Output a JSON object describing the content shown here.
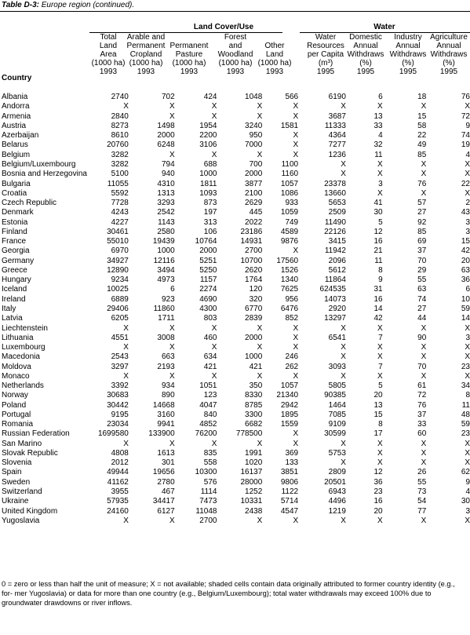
{
  "caption": {
    "label": "Table D-3:",
    "title": " Europe region (continued)."
  },
  "groups": {
    "land": "Land Cover/Use",
    "water": "Water"
  },
  "columns": [
    [
      "Total",
      "Land",
      "Area",
      "(1000 ha)",
      "1993"
    ],
    [
      "Arable and",
      "Permanent",
      "Cropland",
      "(1000 ha)",
      "1993"
    ],
    [
      "Permanent",
      "Pasture",
      "(1000 ha)",
      "1993"
    ],
    [
      "Forest",
      "and",
      "Woodland",
      "(1000 ha)",
      "1993"
    ],
    [
      "Other",
      "Land",
      "(1000 ha)",
      "1993"
    ],
    [
      "Water",
      "Resources",
      "per Capita",
      "(m³)",
      "1995"
    ],
    [
      "Domestic",
      "Annual",
      "Withdraws",
      "(%)",
      "1995"
    ],
    [
      "Industry",
      "Annual",
      "Withdraws",
      "(%)",
      "1995"
    ],
    [
      "Agriculture",
      "Annual",
      "Withdraws",
      "(%)",
      "1995"
    ]
  ],
  "country_header": "Country",
  "rows": [
    [
      "Albania",
      "2740",
      "702",
      "424",
      "1048",
      "566",
      "6190",
      "6",
      "18",
      "76"
    ],
    [
      "Andorra",
      "X",
      "X",
      "X",
      "X",
      "X",
      "X",
      "X",
      "X",
      "X"
    ],
    [
      "Armenia",
      "2840",
      "X",
      "X",
      "X",
      "X",
      "3687",
      "13",
      "15",
      "72"
    ],
    [
      "Austria",
      "8273",
      "1498",
      "1954",
      "3240",
      "1581",
      "11333",
      "33",
      "58",
      "9"
    ],
    [
      "Azerbaijan",
      "8610",
      "2000",
      "2200",
      "950",
      "X",
      "4364",
      "4",
      "22",
      "74"
    ],
    [
      "Belarus",
      "20760",
      "6248",
      "3106",
      "7000",
      "X",
      "7277",
      "32",
      "49",
      "19"
    ],
    [
      "Belgium",
      "3282",
      "X",
      "X",
      "X",
      "X",
      "1236",
      "11",
      "85",
      "4"
    ],
    [
      "Belgium/Luxembourg",
      "3282",
      "794",
      "688",
      "700",
      "1100",
      "X",
      "X",
      "X",
      "X"
    ],
    [
      "Bosnia and Herzegovina",
      "5100",
      "940",
      "1000",
      "2000",
      "1160",
      "X",
      "X",
      "X",
      "X"
    ],
    [
      "Bulgaria",
      "11055",
      "4310",
      "1811",
      "3877",
      "1057",
      "23378",
      "3",
      "76",
      "22"
    ],
    [
      "Croatia",
      "5592",
      "1313",
      "1093",
      "2100",
      "1086",
      "13660",
      "X",
      "X",
      "X"
    ],
    [
      "Czech Republic",
      "7728",
      "3293",
      "873",
      "2629",
      "933",
      "5653",
      "41",
      "57",
      "2"
    ],
    [
      "Denmark",
      "4243",
      "2542",
      "197",
      "445",
      "1059",
      "2509",
      "30",
      "27",
      "43"
    ],
    [
      "Estonia",
      "4227",
      "1143",
      "313",
      "2022",
      "749",
      "11490",
      "5",
      "92",
      "3"
    ],
    [
      "Finland",
      "30461",
      "2580",
      "106",
      "23186",
      "4589",
      "22126",
      "12",
      "85",
      "3"
    ],
    [
      "France",
      "55010",
      "19439",
      "10764",
      "14931",
      "9876",
      "3415",
      "16",
      "69",
      "15"
    ],
    [
      "Georgia",
      "6970",
      "1000",
      "2000",
      "2700",
      "X",
      "11942",
      "21",
      "37",
      "42"
    ],
    [
      "Germany",
      "34927",
      "12116",
      "5251",
      "10700",
      "17560",
      "2096",
      "11",
      "70",
      "20"
    ],
    [
      "Greece",
      "12890",
      "3494",
      "5250",
      "2620",
      "1526",
      "5612",
      "8",
      "29",
      "63"
    ],
    [
      "Hungary",
      "9234",
      "4973",
      "1157",
      "1764",
      "1340",
      "11864",
      "9",
      "55",
      "36"
    ],
    [
      "Iceland",
      "10025",
      "6",
      "2274",
      "120",
      "7625",
      "624535",
      "31",
      "63",
      "6"
    ],
    [
      "Ireland",
      "6889",
      "923",
      "4690",
      "320",
      "956",
      "14073",
      "16",
      "74",
      "10"
    ],
    [
      "Italy",
      "29406",
      "11860",
      "4300",
      "6770",
      "6476",
      "2920",
      "14",
      "27",
      "59"
    ],
    [
      "Latvia",
      "6205",
      "1711",
      "803",
      "2839",
      "852",
      "13297",
      "42",
      "44",
      "14"
    ],
    [
      "Liechtenstein",
      "X",
      "X",
      "X",
      "X",
      "X",
      "X",
      "X",
      "X",
      "X"
    ],
    [
      "Lithuania",
      "4551",
      "3008",
      "460",
      "2000",
      "X",
      "6541",
      "7",
      "90",
      "3"
    ],
    [
      "Luxembourg",
      "X",
      "X",
      "X",
      "X",
      "X",
      "X",
      "X",
      "X",
      "X"
    ],
    [
      "Macedonia",
      "2543",
      "663",
      "634",
      "1000",
      "246",
      "X",
      "X",
      "X",
      "X"
    ],
    [
      "Moldova",
      "3297",
      "2193",
      "421",
      "421",
      "262",
      "3093",
      "7",
      "70",
      "23"
    ],
    [
      "Monaco",
      "X",
      "X",
      "X",
      "X",
      "X",
      "X",
      "X",
      "X",
      "X"
    ],
    [
      "Netherlands",
      "3392",
      "934",
      "1051",
      "350",
      "1057",
      "5805",
      "5",
      "61",
      "34"
    ],
    [
      "Norway",
      "30683",
      "890",
      "123",
      "8330",
      "21340",
      "90385",
      "20",
      "72",
      "8"
    ],
    [
      "Poland",
      "30442",
      "14668",
      "4047",
      "8785",
      "2942",
      "1464",
      "13",
      "76",
      "11"
    ],
    [
      "Portugal",
      "9195",
      "3160",
      "840",
      "3300",
      "1895",
      "7085",
      "15",
      "37",
      "48"
    ],
    [
      "Romania",
      "23034",
      "9941",
      "4852",
      "6682",
      "1559",
      "9109",
      "8",
      "33",
      "59"
    ],
    [
      "Russian Federation",
      "1699580",
      "133900",
      "76200",
      "778500",
      "X",
      "30599",
      "17",
      "60",
      "23"
    ],
    [
      "San Marino",
      "X",
      "X",
      "X",
      "X",
      "X",
      "X",
      "X",
      "X",
      "X"
    ],
    [
      "Slovak Republic",
      "4808",
      "1613",
      "835",
      "1991",
      "369",
      "5753",
      "X",
      "X",
      "X"
    ],
    [
      "Slovenia",
      "2012",
      "301",
      "558",
      "1020",
      "133",
      "X",
      "X",
      "X",
      "X"
    ],
    [
      "Spain",
      "49944",
      "19656",
      "10300",
      "16137",
      "3851",
      "2809",
      "12",
      "26",
      "62"
    ],
    [
      "Sweden",
      "41162",
      "2780",
      "576",
      "28000",
      "9806",
      "20501",
      "36",
      "55",
      "9"
    ],
    [
      "Switzerland",
      "3955",
      "467",
      "1114",
      "1252",
      "1122",
      "6943",
      "23",
      "73",
      "4"
    ],
    [
      "Ukraine",
      "57935",
      "34417",
      "7473",
      "10331",
      "5714",
      "4496",
      "16",
      "54",
      "30"
    ],
    [
      "United Kingdom",
      "24160",
      "6127",
      "11048",
      "2438",
      "4547",
      "1219",
      "20",
      "77",
      "3"
    ],
    [
      "Yugoslavia",
      "X",
      "X",
      "2700",
      "X",
      "X",
      "X",
      "X",
      "X",
      "X"
    ]
  ],
  "footnote": "0 = zero or less than half the unit of measure; X = not available; shaded cells contain data originally attributed to former country identity (e.g., for- mer Yugoslavia) or data for more than one country (e.g., Belgium/Luxembourg); total water withdrawals may exceed 100% due to groundwater drawdowns or river inflows."
}
